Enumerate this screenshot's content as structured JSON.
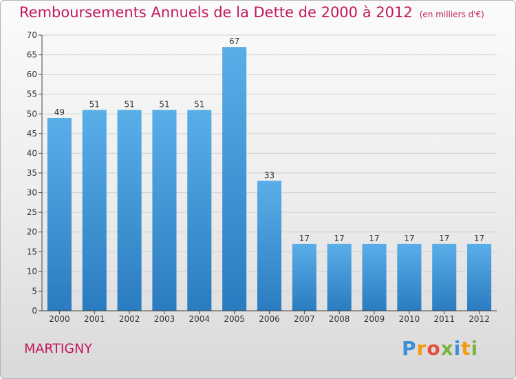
{
  "header": {
    "title": "Remboursements Annuels de la Dette de 2000 à 2012",
    "unit": "(en milliers d'€)"
  },
  "footer": {
    "city": "MARTIGNY",
    "logo": "Proxiti"
  },
  "colors": {
    "title": "#c2185b",
    "bar_top": "#5aaee8",
    "bar_bottom": "#2a7cc0"
  },
  "chart_data": {
    "type": "bar",
    "categories": [
      "2000",
      "2001",
      "2002",
      "2003",
      "2004",
      "2005",
      "2006",
      "2007",
      "2008",
      "2009",
      "2010",
      "2011",
      "2012"
    ],
    "values": [
      49,
      51,
      51,
      51,
      51,
      67,
      33,
      17,
      17,
      17,
      17,
      17,
      17
    ],
    "title": "Remboursements Annuels de la Dette de 2000 à 2012",
    "xlabel": "",
    "ylabel": "",
    "ylim": [
      0,
      70
    ],
    "yticks": [
      0,
      5,
      10,
      15,
      20,
      25,
      30,
      35,
      40,
      45,
      50,
      55,
      60,
      65,
      70
    ],
    "grid": true,
    "data_labels": true
  }
}
